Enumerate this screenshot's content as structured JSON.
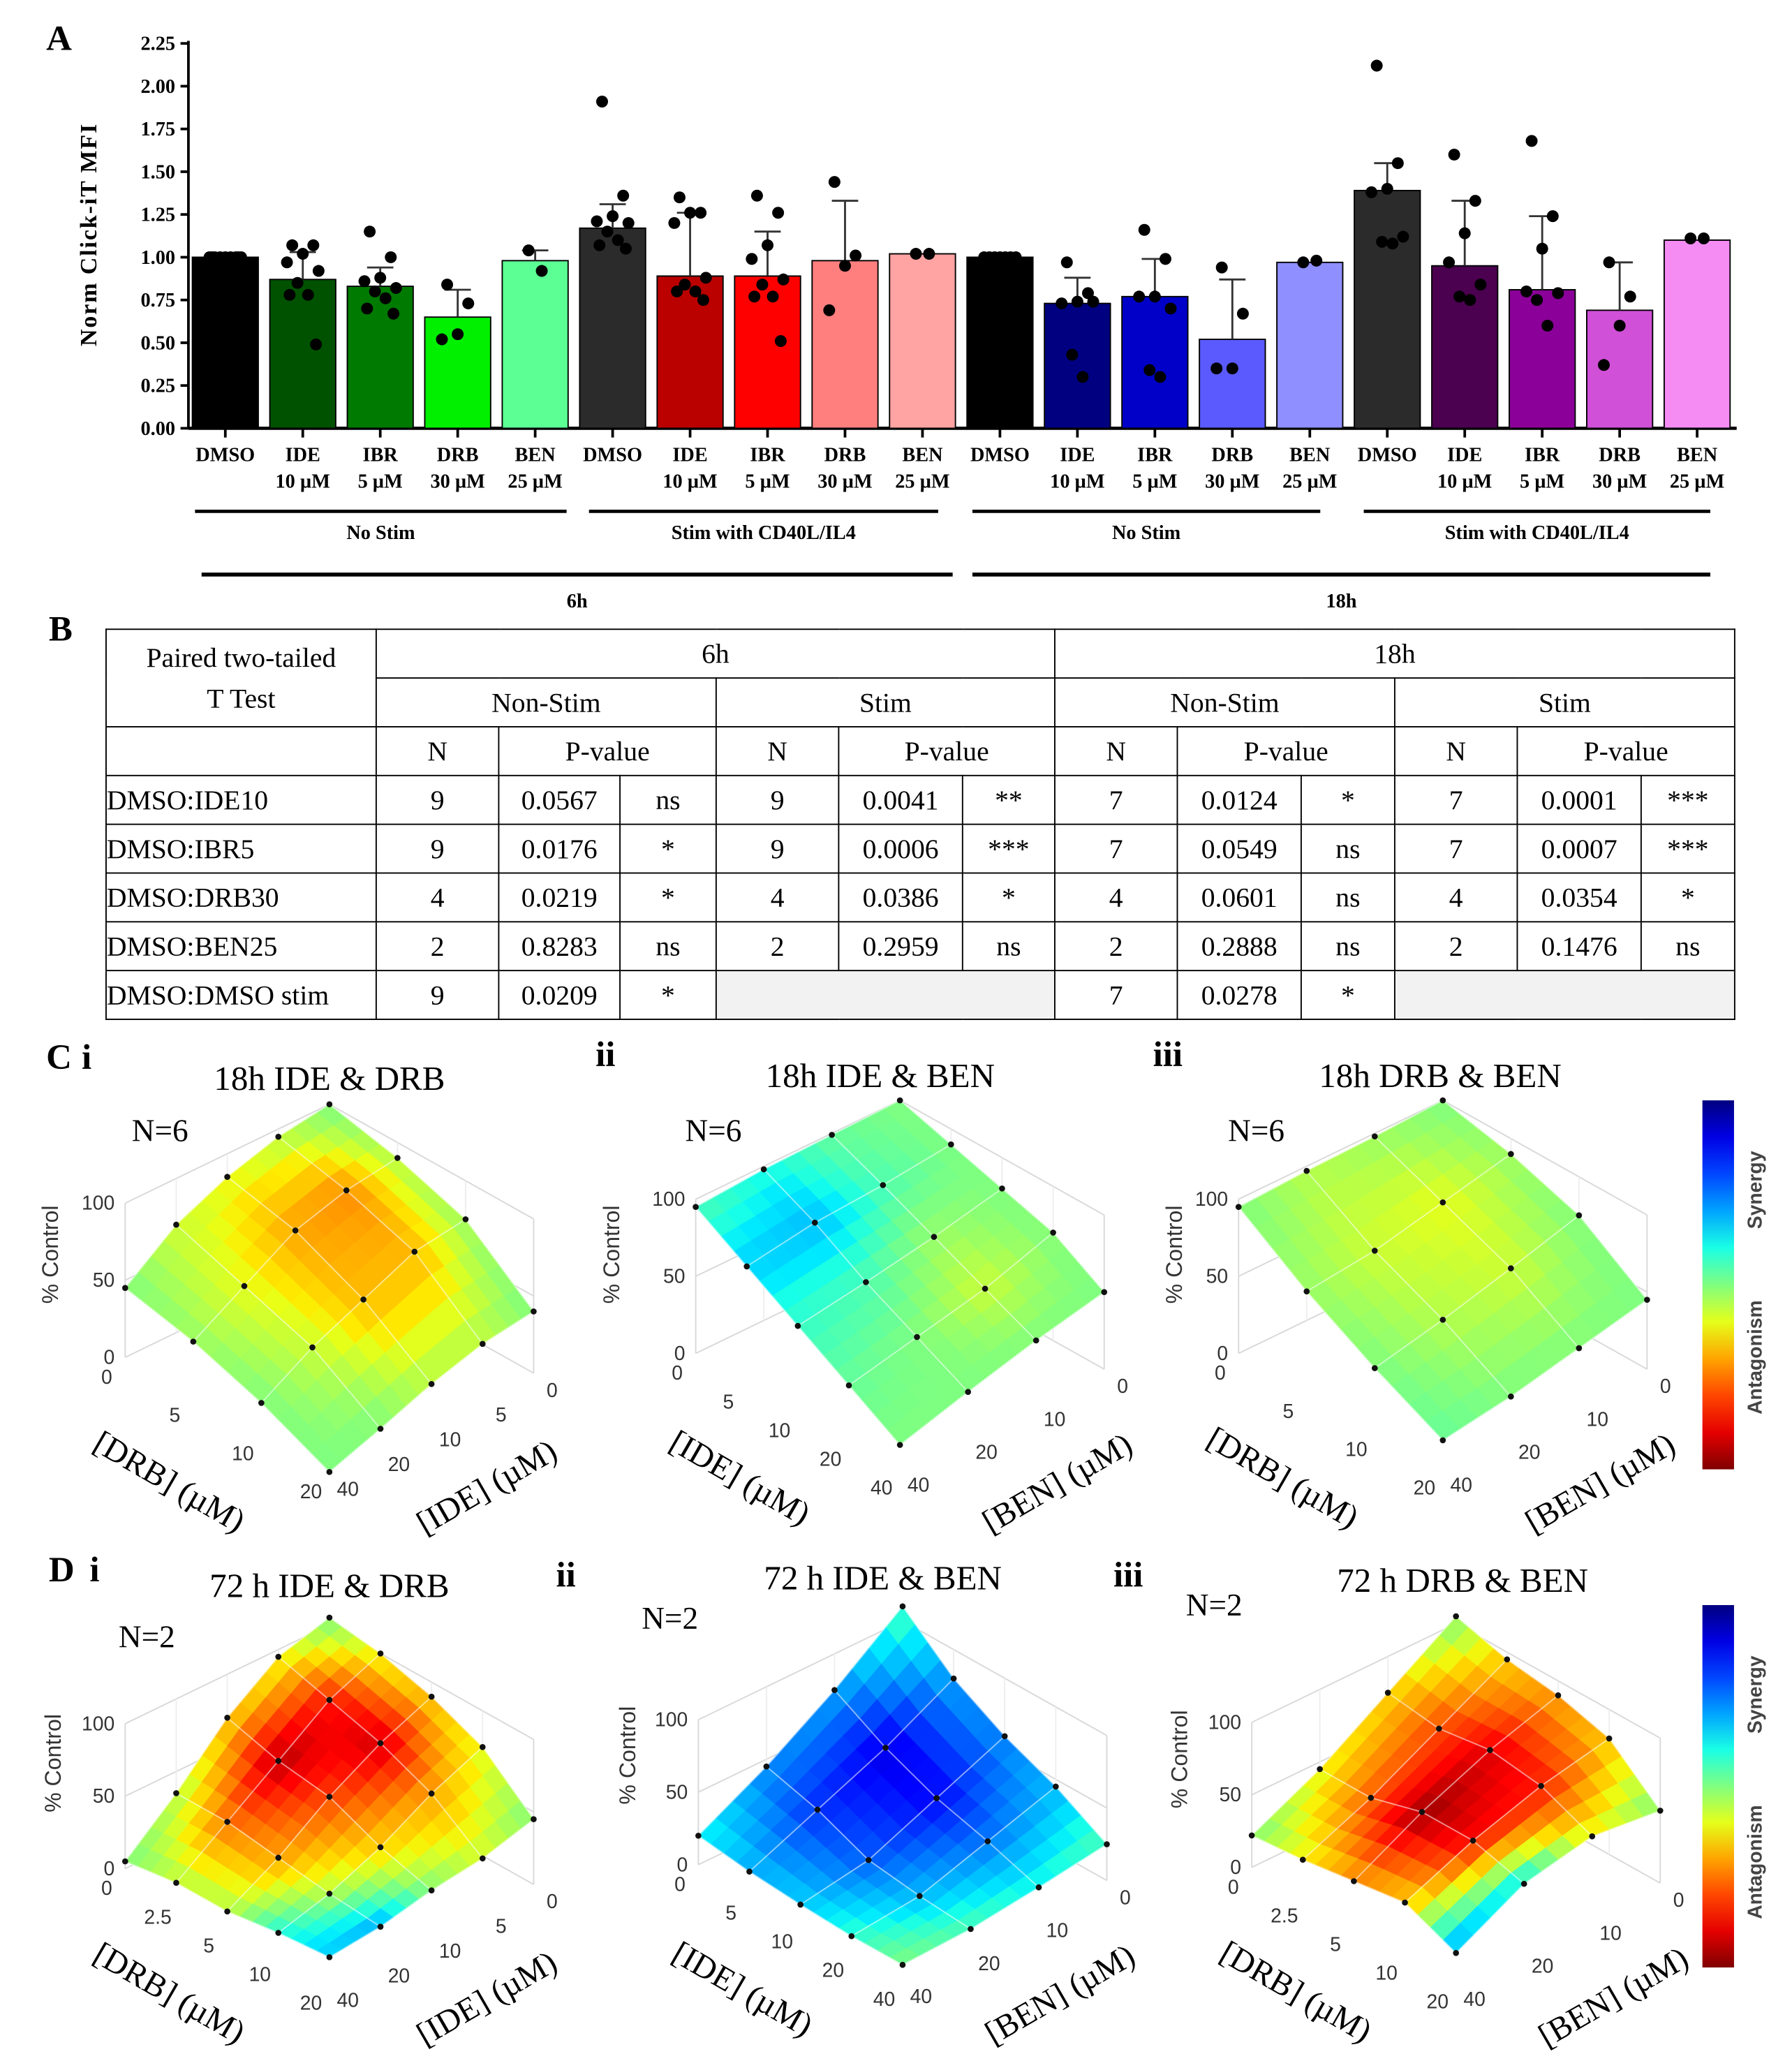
{
  "labels": {
    "a": "A",
    "b": "B",
    "c": "C",
    "c_i": "i",
    "c_ii": "ii",
    "c_iii": "iii",
    "d": "D",
    "d_i": "i",
    "d_ii": "ii",
    "d_iii": "iii"
  },
  "chart_data": [
    {
      "type": "bar",
      "title": "",
      "xlabel": "",
      "ylabel": "Norm Click-iT MFI",
      "ylim": [
        0,
        2.25
      ],
      "yticks": [
        "0.00",
        "0.25",
        "0.50",
        "0.75",
        "1.00",
        "1.25",
        "1.50",
        "1.75",
        "2.00",
        "2.25"
      ],
      "bars": [
        {
          "drug": "DMSO",
          "dose": "",
          "mean": 1.0,
          "sd_upper": 1.0,
          "color": "#000000",
          "points": [
            1,
            1,
            1,
            1,
            1,
            1,
            1,
            1,
            1
          ]
        },
        {
          "drug": "IDE",
          "dose": "10 µM",
          "mean": 0.87,
          "sd_upper": 1.03,
          "color": "#005200",
          "points": [
            1.07,
            1.07,
            1.02,
            0.97,
            0.92,
            0.85,
            0.78,
            0.78,
            0.49
          ]
        },
        {
          "drug": "IBR",
          "dose": "5 µM",
          "mean": 0.83,
          "sd_upper": 0.94,
          "color": "#007a00",
          "points": [
            1.15,
            1.0,
            0.88,
            0.86,
            0.82,
            0.8,
            0.76,
            0.7,
            0.67
          ]
        },
        {
          "drug": "DRB",
          "dose": "30 µM",
          "mean": 0.65,
          "sd_upper": 0.81,
          "color": "#00f000",
          "points": [
            0.84,
            0.73,
            0.55,
            0.52
          ]
        },
        {
          "drug": "BEN",
          "dose": "25 µM",
          "mean": 0.98,
          "sd_upper": 1.04,
          "color": "#5cff94",
          "points": [
            1.04,
            0.92
          ]
        },
        {
          "drug": "DMSO",
          "dose": "",
          "mean": 1.17,
          "sd_upper": 1.31,
          "color": "#2b2b2b",
          "points": [
            1.91,
            1.36,
            1.24,
            1.21,
            1.2,
            1.15,
            1.1,
            1.07,
            1.05
          ]
        },
        {
          "drug": "IDE",
          "dose": "10 µM",
          "mean": 0.89,
          "sd_upper": 1.26,
          "color": "#bb0000",
          "points": [
            1.35,
            1.26,
            1.26,
            1.2,
            0.88,
            0.84,
            0.8,
            0.8,
            0.75
          ]
        },
        {
          "drug": "IBR",
          "dose": "5 µM",
          "mean": 0.89,
          "sd_upper": 1.15,
          "color": "#ff0000",
          "points": [
            1.36,
            1.26,
            1.07,
            0.99,
            0.87,
            0.84,
            0.77,
            0.77,
            0.51
          ]
        },
        {
          "drug": "DRB",
          "dose": "30 µM",
          "mean": 0.98,
          "sd_upper": 1.33,
          "color": "#ff7f7f",
          "points": [
            1.44,
            1.01,
            0.95,
            0.69
          ]
        },
        {
          "drug": "BEN",
          "dose": "25 µM",
          "mean": 1.02,
          "sd_upper": 1.02,
          "color": "#ffa3a3",
          "points": [
            1.02,
            1.02
          ]
        },
        {
          "drug": "DMSO",
          "dose": "",
          "mean": 1.0,
          "sd_upper": 1.0,
          "color": "#000000",
          "points": [
            1,
            1,
            1,
            1,
            1,
            1,
            1
          ]
        },
        {
          "drug": "IDE",
          "dose": "10 µM",
          "mean": 0.73,
          "sd_upper": 0.88,
          "color": "#000080",
          "points": [
            0.97,
            0.79,
            0.74,
            0.73,
            0.74,
            0.43,
            0.3
          ]
        },
        {
          "drug": "IBR",
          "dose": "5 µM",
          "mean": 0.77,
          "sd_upper": 0.99,
          "color": "#0000c8",
          "points": [
            1.16,
            0.99,
            0.77,
            0.77,
            0.7,
            0.34,
            0.3
          ]
        },
        {
          "drug": "DRB",
          "dose": "30 µM",
          "mean": 0.52,
          "sd_upper": 0.87,
          "color": "#5a5aff",
          "points": [
            0.94,
            0.67,
            0.35,
            0.35
          ]
        },
        {
          "drug": "BEN",
          "dose": "25 µM",
          "mean": 0.97,
          "sd_upper": 0.97,
          "color": "#8f8fff",
          "points": [
            0.97,
            0.98
          ]
        },
        {
          "drug": "DMSO",
          "dose": "",
          "mean": 1.39,
          "sd_upper": 1.55,
          "color": "#2b2b2b",
          "points": [
            2.12,
            1.55,
            1.4,
            1.38,
            1.12,
            1.09,
            1.08
          ]
        },
        {
          "drug": "IDE",
          "dose": "10 µM",
          "mean": 0.95,
          "sd_upper": 1.33,
          "color": "#4b0050",
          "points": [
            1.6,
            1.33,
            1.14,
            0.97,
            0.84,
            0.77,
            0.75
          ]
        },
        {
          "drug": "IBR",
          "dose": "5 µM",
          "mean": 0.81,
          "sd_upper": 1.24,
          "color": "#8a0098",
          "points": [
            1.68,
            1.24,
            1.05,
            0.8,
            0.79,
            0.75,
            0.6
          ]
        },
        {
          "drug": "DRB",
          "dose": "30 µM",
          "mean": 0.69,
          "sd_upper": 0.97,
          "color": "#d050d8",
          "points": [
            0.97,
            0.77,
            0.6,
            0.37
          ]
        },
        {
          "drug": "BEN",
          "dose": "25 µM",
          "mean": 1.1,
          "sd_upper": 1.1,
          "color": "#f48cf4",
          "points": [
            1.11,
            1.11
          ]
        }
      ],
      "condition_groups": [
        "No Stim",
        "Stim with CD40L/IL4",
        "No Stim",
        "Stim with CD40L/IL4"
      ],
      "time_groups": [
        "6h",
        "18h"
      ]
    },
    {
      "type": "surface",
      "panel": "C i",
      "title": "18h IDE & DRB",
      "n_label": "N=6",
      "zlabel": "% Control",
      "zticks": [
        "0",
        "50",
        "100"
      ],
      "row_axis": {
        "label": "[DRB] (µM)",
        "ticks": [
          "0",
          "5",
          "10",
          "20"
        ]
      },
      "col_axis": {
        "label": "[IDE] (µM)",
        "ticks": [
          "0",
          "5",
          "10",
          "20",
          "40"
        ]
      },
      "z": [
        [
          100,
          95,
          85,
          70,
          45
        ],
        [
          90,
          85,
          75,
          55,
          35
        ],
        [
          75,
          70,
          55,
          40,
          20
        ],
        [
          40,
          35,
          25,
          12,
          0
        ]
      ],
      "synergy_score": [
        [
          0,
          -0.1,
          -0.2,
          -0.15,
          0
        ],
        [
          -0.1,
          -0.45,
          -0.4,
          -0.2,
          -0.05
        ],
        [
          -0.05,
          -0.35,
          -0.35,
          -0.15,
          0
        ],
        [
          0,
          -0.1,
          -0.1,
          0,
          0
        ]
      ]
    },
    {
      "type": "surface",
      "panel": "C ii",
      "title": "18h IDE & BEN",
      "n_label": "N=6",
      "zlabel": "% Control",
      "zticks": [
        "0",
        "50",
        "100"
      ],
      "row_axis": {
        "label": "[IDE] (µM)",
        "ticks": [
          "0",
          "5",
          "10",
          "20",
          "40"
        ]
      },
      "col_axis": {
        "label": "[BEN] (µM)",
        "ticks": [
          "0",
          "10",
          "20",
          "40"
        ]
      },
      "z": [
        [
          100,
          99,
          98,
          95
        ],
        [
          90,
          85,
          82,
          75
        ],
        [
          80,
          70,
          62,
          55
        ],
        [
          70,
          55,
          45,
          35
        ],
        [
          50,
          40,
          28,
          15
        ]
      ],
      "synergy_score": [
        [
          0,
          0.05,
          0.2,
          0.1
        ],
        [
          0,
          0.1,
          0.35,
          0.3
        ],
        [
          0,
          -0.05,
          0.1,
          0.15
        ],
        [
          0,
          -0.15,
          0,
          0.05
        ],
        [
          0,
          0,
          0,
          0
        ]
      ]
    },
    {
      "type": "surface",
      "panel": "C iii",
      "title": "18h DRB & BEN",
      "n_label": "N=6",
      "zlabel": "% Control",
      "zticks": [
        "0",
        "50",
        "100"
      ],
      "row_axis": {
        "label": "[DRB] (µM)",
        "ticks": [
          "0",
          "5",
          "10",
          "20"
        ]
      },
      "col_axis": {
        "label": "[BEN] (µM)",
        "ticks": [
          "0",
          "10",
          "20",
          "40"
        ]
      },
      "z": [
        [
          100,
          98,
          97,
          95
        ],
        [
          90,
          80,
          70,
          65
        ],
        [
          75,
          62,
          50,
          40
        ],
        [
          45,
          35,
          25,
          18
        ]
      ],
      "synergy_score": [
        [
          0,
          -0.05,
          -0.1,
          0
        ],
        [
          -0.05,
          -0.2,
          -0.15,
          -0.05
        ],
        [
          0,
          -0.15,
          -0.1,
          0
        ],
        [
          0,
          0,
          0,
          0.05
        ]
      ]
    },
    {
      "type": "surface",
      "panel": "D i",
      "title": "72 h IDE & DRB",
      "n_label": "N=2",
      "zlabel": "% Control",
      "zticks": [
        "0",
        "50",
        "100"
      ],
      "row_axis": {
        "label": "[DRB] (µM)",
        "ticks": [
          "0",
          "2.5",
          "5",
          "10",
          "20"
        ]
      },
      "col_axis": {
        "label": "[IDE] (µM)",
        "ticks": [
          "0",
          "5",
          "10",
          "20",
          "40"
        ]
      },
      "z": [
        [
          105,
          95,
          70,
          35,
          5
        ],
        [
          100,
          85,
          60,
          35,
          10
        ],
        [
          90,
          75,
          55,
          30,
          10
        ],
        [
          75,
          60,
          40,
          25,
          15
        ],
        [
          45,
          35,
          30,
          22,
          18
        ]
      ],
      "synergy_score": [
        [
          0,
          -0.2,
          -0.3,
          -0.1,
          0
        ],
        [
          -0.2,
          -0.7,
          -0.9,
          -0.5,
          -0.1
        ],
        [
          -0.3,
          -0.85,
          -0.6,
          -0.4,
          -0.1
        ],
        [
          -0.2,
          -0.4,
          -0.3,
          -0.1,
          0.2
        ],
        [
          0,
          -0.15,
          0,
          0.4,
          0.3
        ]
      ]
    },
    {
      "type": "surface",
      "panel": "D ii",
      "title": "72 h IDE & BEN",
      "n_label": "N=2",
      "zlabel": "% Control",
      "zticks": [
        "0",
        "50",
        "100"
      ],
      "row_axis": {
        "label": "[IDE] (µM)",
        "ticks": [
          "0",
          "5",
          "10",
          "20",
          "40"
        ]
      },
      "col_axis": {
        "label": "[BEN] (µM)",
        "ticks": [
          "0",
          "10",
          "20",
          "40"
        ]
      },
      "z": [
        [
          110,
          75,
          45,
          20
        ],
        [
          80,
          55,
          35,
          15
        ],
        [
          60,
          40,
          20,
          12
        ],
        [
          45,
          30,
          15,
          10
        ],
        [
          25,
          18,
          12,
          10
        ]
      ],
      "synergy_score": [
        [
          0.1,
          0.4,
          0.45,
          0.2
        ],
        [
          0.4,
          0.8,
          0.65,
          0.35
        ],
        [
          0.45,
          0.75,
          0.55,
          0.3
        ],
        [
          0.35,
          0.5,
          0.35,
          0.15
        ],
        [
          0.1,
          0.2,
          0.1,
          0
        ]
      ]
    },
    {
      "type": "surface",
      "panel": "D iii",
      "title": "72 h DRB & BEN",
      "n_label": "N=2",
      "zlabel": "% Control",
      "zticks": [
        "0",
        "50",
        "100"
      ],
      "row_axis": {
        "label": "[DRB] (µM)",
        "ticks": [
          "0",
          "2.5",
          "5",
          "10",
          "20"
        ]
      },
      "col_axis": {
        "label": "[BEN] (µM)",
        "ticks": [
          "0",
          "10",
          "20",
          "40"
        ]
      },
      "z": [
        [
          105,
          75,
          45,
          22
        ],
        [
          95,
          70,
          45,
          25
        ],
        [
          90,
          75,
          55,
          30
        ],
        [
          80,
          70,
          55,
          35
        ],
        [
          50,
          55,
          45,
          20
        ]
      ],
      "synergy_score": [
        [
          0,
          -0.3,
          -0.2,
          0
        ],
        [
          -0.3,
          -0.6,
          -0.55,
          -0.2
        ],
        [
          -0.4,
          -0.8,
          -0.95,
          -0.4
        ],
        [
          -0.3,
          -0.7,
          -0.75,
          -0.3
        ],
        [
          0,
          -0.2,
          0.3,
          0.4
        ]
      ]
    }
  ],
  "colorbar": {
    "top_label": "Synergy",
    "bottom_label": "Antagonism"
  },
  "table": {
    "corner_label_line1": "Paired two-tailed",
    "corner_label_line2": "T Test",
    "times": [
      "6h",
      "18h"
    ],
    "conditions": [
      "Non-Stim",
      "Stim",
      "Non-Stim",
      "Stim"
    ],
    "col_n": "N",
    "col_p": "P-value",
    "rows": [
      {
        "label": "DMSO:IDE10",
        "cells": [
          [
            "9",
            "0.0567",
            "ns"
          ],
          [
            "9",
            "0.0041",
            "**"
          ],
          [
            "7",
            "0.0124",
            "*"
          ],
          [
            "7",
            "0.0001",
            "***"
          ]
        ]
      },
      {
        "label": "DMSO:IBR5",
        "cells": [
          [
            "9",
            "0.0176",
            "*"
          ],
          [
            "9",
            "0.0006",
            "***"
          ],
          [
            "7",
            "0.0549",
            "ns"
          ],
          [
            "7",
            "0.0007",
            "***"
          ]
        ]
      },
      {
        "label": "DMSO:DRB30",
        "cells": [
          [
            "4",
            "0.0219",
            "*"
          ],
          [
            "4",
            "0.0386",
            "*"
          ],
          [
            "4",
            "0.0601",
            "ns"
          ],
          [
            "4",
            "0.0354",
            "*"
          ]
        ]
      },
      {
        "label": "DMSO:BEN25",
        "cells": [
          [
            "2",
            "0.8283",
            "ns"
          ],
          [
            "2",
            "0.2959",
            "ns"
          ],
          [
            "2",
            "0.2888",
            "ns"
          ],
          [
            "2",
            "0.1476",
            "ns"
          ]
        ]
      },
      {
        "label": "DMSO:DMSO stim",
        "cells": [
          [
            "9",
            "0.0209",
            "*"
          ],
          null,
          [
            "7",
            "0.0278",
            "*"
          ],
          null
        ]
      }
    ]
  }
}
